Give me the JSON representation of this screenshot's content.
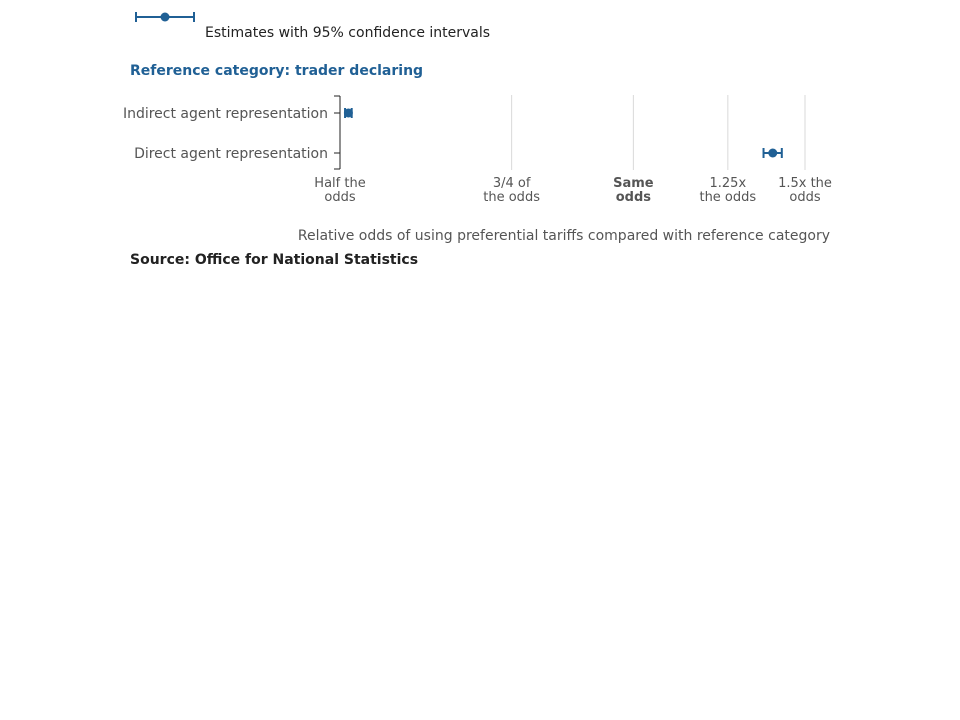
{
  "legend": {
    "label": "Estimates with 95% confidence intervals"
  },
  "reference_title": "Reference category: trader declaring",
  "source": "Source: Office for National Statistics",
  "colors": {
    "accent": "#206095",
    "grid": "#d9d9d9",
    "label": "#555555"
  },
  "chart_data": {
    "type": "scatter",
    "x_scale": "log",
    "xlabel": "Relative odds of using preferential tariffs compared with reference category",
    "xlim": [
      0.5,
      1.5
    ],
    "ticks": [
      {
        "value": 0.5,
        "lines": [
          "Half the",
          "odds"
        ],
        "bold": false
      },
      {
        "value": 0.75,
        "lines": [
          "3/4 of",
          "the odds"
        ],
        "bold": false
      },
      {
        "value": 1.0,
        "lines": [
          "Same",
          "odds"
        ],
        "bold": true
      },
      {
        "value": 1.25,
        "lines": [
          "1.25x",
          "the odds"
        ],
        "bold": false
      },
      {
        "value": 1.5,
        "lines": [
          "1.5x the",
          "odds"
        ],
        "bold": false
      }
    ],
    "categories": [
      "Indirect agent representation",
      "Direct agent representation"
    ],
    "series": [
      {
        "points": [
          {
            "category": "Indirect agent representation",
            "estimate": 0.51,
            "ci": [
              0.506,
              0.514
            ]
          },
          {
            "category": "Direct agent representation",
            "estimate": 1.39,
            "ci": [
              1.36,
              1.42
            ]
          }
        ]
      }
    ]
  }
}
